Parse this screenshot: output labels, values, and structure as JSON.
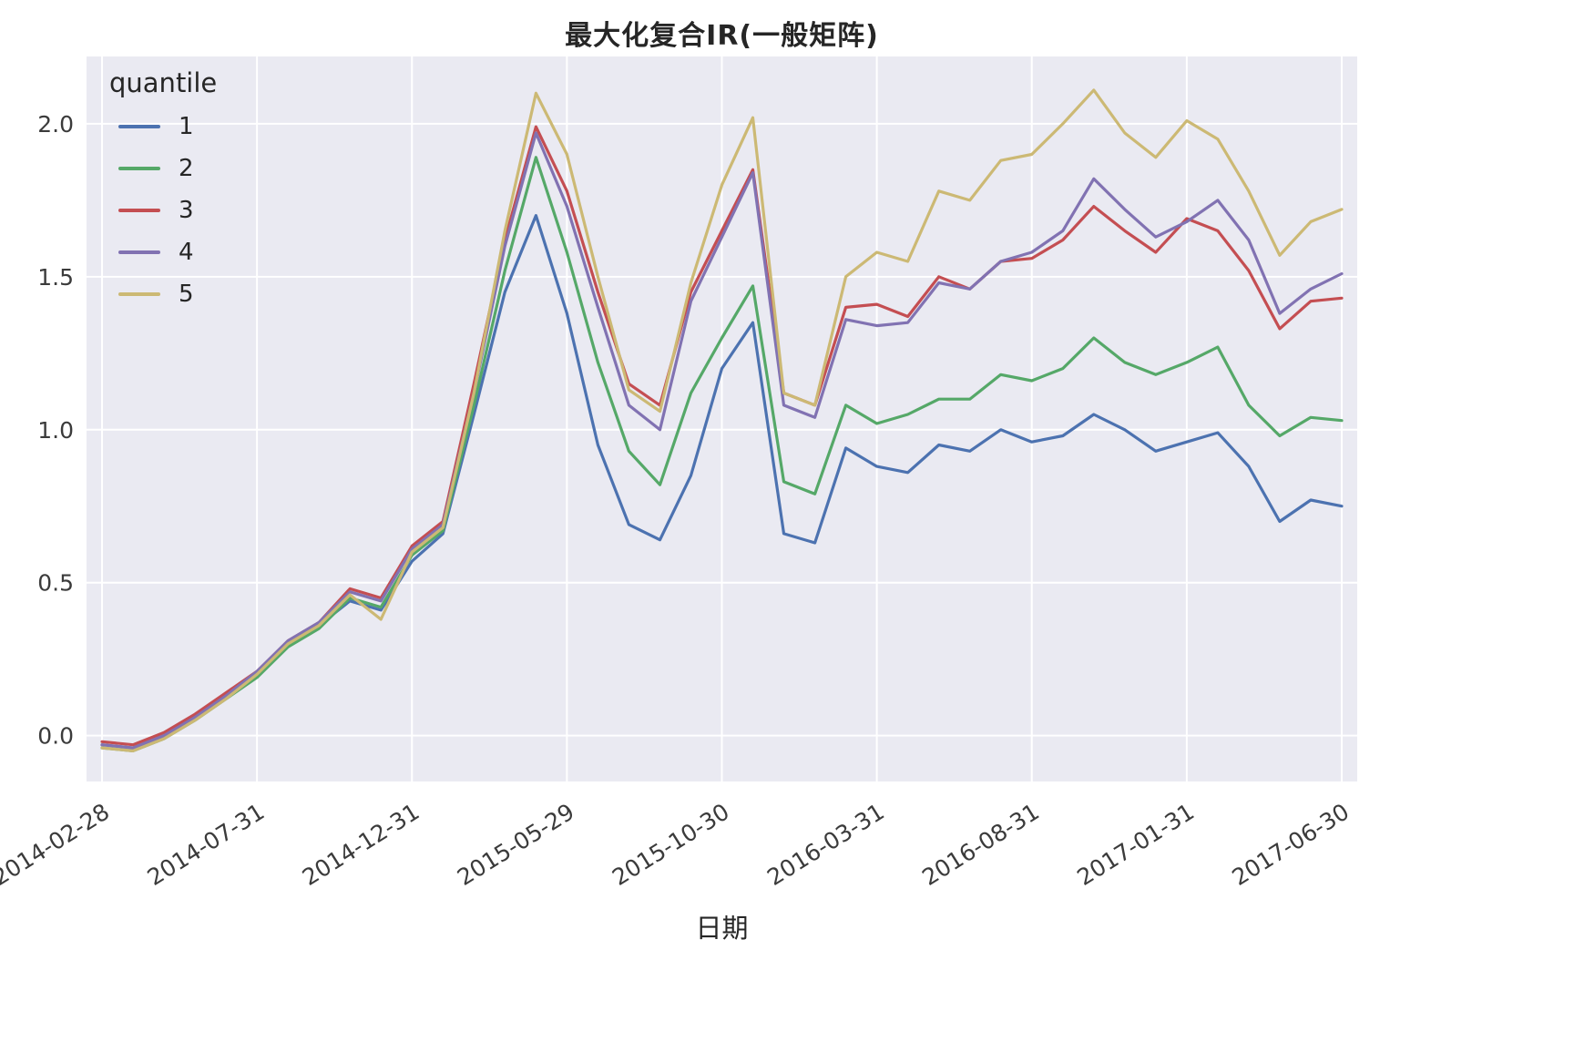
{
  "chart_data": {
    "type": "line",
    "title": "最大化复合IR(一般矩阵)",
    "xlabel": "日期",
    "ylabel": "",
    "legend_title": "quantile",
    "legend_position": "upper-left",
    "grid": true,
    "background": "#EAEAF2",
    "gridline_color": "#FFFFFF",
    "ylim": [
      -0.15,
      2.22
    ],
    "y_ticks": [
      0.0,
      0.5,
      1.0,
      1.5,
      2.0
    ],
    "y_tick_labels": [
      "0.0",
      "0.5",
      "1.0",
      "1.5",
      "2.0"
    ],
    "x": [
      "2014-02-28",
      "2014-03-31",
      "2014-04-30",
      "2014-05-30",
      "2014-06-30",
      "2014-07-31",
      "2014-08-29",
      "2014-09-30",
      "2014-10-31",
      "2014-11-28",
      "2014-12-31",
      "2015-01-30",
      "2015-02-27",
      "2015-03-31",
      "2015-04-30",
      "2015-05-29",
      "2015-06-30",
      "2015-07-31",
      "2015-08-31",
      "2015-09-30",
      "2015-10-30",
      "2015-11-30",
      "2015-12-31",
      "2016-01-29",
      "2016-02-29",
      "2016-03-31",
      "2016-04-29",
      "2016-05-31",
      "2016-06-30",
      "2016-07-29",
      "2016-08-31",
      "2016-09-30",
      "2016-10-31",
      "2016-11-30",
      "2016-12-30",
      "2017-01-31",
      "2017-02-28",
      "2017-03-31",
      "2017-04-28",
      "2017-05-31",
      "2017-06-30"
    ],
    "x_tick_labels": [
      "2014-02-28",
      "2014-07-31",
      "2014-12-31",
      "2015-05-29",
      "2015-10-30",
      "2016-03-31",
      "2016-08-31",
      "2017-01-31",
      "2017-06-30"
    ],
    "series": [
      {
        "name": "1",
        "color": "#4C72B0",
        "values": [
          -0.03,
          -0.04,
          0.0,
          0.06,
          0.13,
          0.2,
          0.3,
          0.36,
          0.44,
          0.41,
          0.57,
          0.66,
          1.05,
          1.45,
          1.7,
          1.38,
          0.95,
          0.69,
          0.64,
          0.85,
          1.2,
          1.35,
          0.66,
          0.63,
          0.94,
          0.88,
          0.86,
          0.95,
          0.93,
          1.0,
          0.96,
          0.98,
          1.05,
          1.0,
          0.93,
          0.96,
          0.99,
          0.88,
          0.7,
          0.77,
          0.75
        ]
      },
      {
        "name": "2",
        "color": "#55A868",
        "values": [
          -0.04,
          -0.05,
          -0.01,
          0.05,
          0.12,
          0.19,
          0.29,
          0.35,
          0.45,
          0.42,
          0.59,
          0.67,
          1.08,
          1.52,
          1.89,
          1.58,
          1.22,
          0.93,
          0.82,
          1.12,
          1.3,
          1.47,
          0.83,
          0.79,
          1.08,
          1.02,
          1.05,
          1.1,
          1.1,
          1.18,
          1.16,
          1.2,
          1.3,
          1.22,
          1.18,
          1.22,
          1.27,
          1.08,
          0.98,
          1.04,
          1.03
        ]
      },
      {
        "name": "3",
        "color": "#C44E52",
        "values": [
          -0.02,
          -0.03,
          0.01,
          0.07,
          0.14,
          0.21,
          0.31,
          0.37,
          0.48,
          0.45,
          0.62,
          0.7,
          1.15,
          1.62,
          1.99,
          1.78,
          1.45,
          1.15,
          1.08,
          1.45,
          1.65,
          1.85,
          1.12,
          1.08,
          1.4,
          1.41,
          1.37,
          1.5,
          1.46,
          1.55,
          1.56,
          1.62,
          1.73,
          1.65,
          1.58,
          1.69,
          1.65,
          1.52,
          1.33,
          1.42,
          1.43
        ]
      },
      {
        "name": "4",
        "color": "#8172B2",
        "values": [
          -0.03,
          -0.04,
          0.0,
          0.06,
          0.13,
          0.21,
          0.31,
          0.37,
          0.47,
          0.44,
          0.61,
          0.69,
          1.12,
          1.6,
          1.97,
          1.73,
          1.4,
          1.08,
          1.0,
          1.42,
          1.63,
          1.84,
          1.08,
          1.04,
          1.36,
          1.34,
          1.35,
          1.48,
          1.46,
          1.55,
          1.58,
          1.65,
          1.82,
          1.72,
          1.63,
          1.68,
          1.75,
          1.62,
          1.38,
          1.46,
          1.51
        ]
      },
      {
        "name": "5",
        "color": "#CCB974",
        "values": [
          -0.04,
          -0.05,
          -0.01,
          0.05,
          0.12,
          0.2,
          0.3,
          0.36,
          0.46,
          0.38,
          0.6,
          0.68,
          1.12,
          1.65,
          2.1,
          1.9,
          1.5,
          1.13,
          1.06,
          1.48,
          1.8,
          2.02,
          1.12,
          1.08,
          1.5,
          1.58,
          1.55,
          1.78,
          1.75,
          1.88,
          1.9,
          2.0,
          2.11,
          1.97,
          1.89,
          2.01,
          1.95,
          1.78,
          1.57,
          1.68,
          1.72
        ]
      }
    ]
  }
}
